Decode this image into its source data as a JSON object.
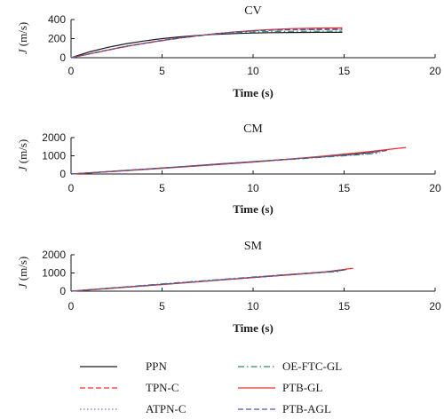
{
  "chart_data": [
    {
      "type": "line",
      "title": "CV",
      "xlabel": "Time (s)",
      "ylabel_italic": "J",
      "ylabel_rest": " (m/s)",
      "xlim": [
        0,
        20
      ],
      "ylim": [
        0,
        400
      ],
      "xticks": [
        0,
        5,
        10,
        15,
        20
      ],
      "yticks": [
        0,
        200,
        400
      ],
      "series": [
        {
          "name": "PPN",
          "x": [
            0,
            1,
            2,
            3,
            4,
            5,
            6,
            7,
            8,
            9,
            10,
            11,
            12,
            13,
            14,
            14.9
          ],
          "y": [
            0,
            60,
            108,
            145,
            175,
            200,
            219,
            234,
            245,
            253,
            259,
            262,
            264,
            265,
            266,
            266
          ]
        },
        {
          "name": "TPN-C",
          "x": [
            0,
            1,
            2,
            3,
            4,
            5,
            6,
            7,
            8,
            9,
            10,
            11,
            12,
            13,
            14,
            14.9
          ],
          "y": [
            0,
            40,
            80,
            118,
            150,
            180,
            207,
            230,
            252,
            270,
            283,
            292,
            297,
            300,
            302,
            303
          ]
        },
        {
          "name": "ATPN-C",
          "x": [
            0,
            1,
            2,
            3,
            4,
            5,
            6,
            7,
            8,
            9,
            10,
            11,
            12,
            13,
            14,
            14.9
          ],
          "y": [
            0,
            41,
            82,
            120,
            152,
            182,
            209,
            232,
            254,
            271,
            283,
            290,
            294,
            296,
            297,
            297
          ]
        },
        {
          "name": "OE-FTC-GL",
          "x": [
            0,
            1,
            2,
            3,
            4,
            5,
            6,
            7,
            8,
            9,
            10,
            11,
            12,
            13,
            14,
            14.9
          ],
          "y": [
            0,
            38,
            78,
            115,
            148,
            178,
            205,
            228,
            248,
            262,
            270,
            274,
            276,
            277,
            278,
            278
          ]
        },
        {
          "name": "PTB-GL",
          "x": [
            0,
            1,
            2,
            3,
            4,
            5,
            6,
            7,
            8,
            9,
            10,
            11,
            12,
            13,
            14,
            14.9
          ],
          "y": [
            0,
            39,
            79,
            117,
            150,
            180,
            207,
            231,
            252,
            270,
            285,
            296,
            304,
            309,
            312,
            313
          ]
        },
        {
          "name": "PTB-AGL",
          "x": [
            0,
            1,
            2,
            3,
            4,
            5,
            6,
            7,
            8,
            9,
            10,
            11,
            12,
            13,
            14,
            14.9
          ],
          "y": [
            0,
            40,
            80,
            118,
            151,
            181,
            208,
            231,
            252,
            269,
            281,
            288,
            292,
            294,
            295,
            295
          ]
        }
      ]
    },
    {
      "type": "line",
      "title": "CM",
      "xlabel": "Time (s)",
      "ylabel_italic": "J",
      "ylabel_rest": " (m/s)",
      "xlim": [
        0,
        20
      ],
      "ylim": [
        0,
        2000
      ],
      "xticks": [
        0,
        5,
        10,
        15,
        20
      ],
      "yticks": [
        0,
        1000,
        2000
      ],
      "series": [
        {
          "name": "PPN",
          "x": [
            0,
            2,
            4,
            6,
            8,
            10,
            12,
            14,
            16,
            17.2
          ],
          "y": [
            0,
            130,
            265,
            400,
            540,
            680,
            820,
            960,
            1130,
            1310
          ]
        },
        {
          "name": "TPN-C",
          "x": [
            0,
            2,
            4,
            6,
            8,
            10,
            12,
            14,
            16,
            17.4
          ],
          "y": [
            0,
            125,
            255,
            390,
            530,
            670,
            820,
            970,
            1150,
            1300
          ]
        },
        {
          "name": "ATPN-C",
          "x": [
            0,
            2,
            4,
            6,
            8,
            10,
            12,
            14,
            16,
            17.0
          ],
          "y": [
            0,
            120,
            250,
            385,
            525,
            665,
            805,
            945,
            1090,
            1180
          ]
        },
        {
          "name": "OE-FTC-GL",
          "x": [
            0,
            2,
            4,
            6,
            8,
            10,
            12,
            14,
            16,
            16.9
          ],
          "y": [
            0,
            125,
            255,
            390,
            525,
            660,
            795,
            930,
            1070,
            1150
          ]
        },
        {
          "name": "PTB-GL",
          "x": [
            0,
            2,
            4,
            6,
            8,
            10,
            12,
            14,
            16,
            18.4
          ],
          "y": [
            0,
            120,
            245,
            375,
            510,
            655,
            820,
            995,
            1190,
            1460
          ]
        },
        {
          "name": "PTB-AGL",
          "x": [
            0,
            2,
            4,
            6,
            8,
            10,
            12,
            14,
            16,
            17.3
          ],
          "y": [
            0,
            122,
            250,
            385,
            525,
            665,
            810,
            955,
            1120,
            1280
          ]
        }
      ]
    },
    {
      "type": "line",
      "title": "SM",
      "xlabel": "Time (s)",
      "ylabel_italic": "J",
      "ylabel_rest": " (m/s)",
      "xlim": [
        0,
        20
      ],
      "ylim": [
        0,
        2000
      ],
      "xticks": [
        0,
        5,
        10,
        15,
        20
      ],
      "yticks": [
        0,
        1000,
        2000
      ],
      "series": [
        {
          "name": "PPN",
          "x": [
            0,
            2,
            4,
            6,
            8,
            10,
            12,
            14,
            15.0
          ],
          "y": [
            0,
            150,
            300,
            450,
            600,
            750,
            900,
            1050,
            1160
          ]
        },
        {
          "name": "TPN-C",
          "x": [
            0,
            2,
            4,
            6,
            8,
            10,
            12,
            14,
            15.4
          ],
          "y": [
            0,
            145,
            295,
            445,
            600,
            750,
            900,
            1060,
            1250
          ]
        },
        {
          "name": "ATPN-C",
          "x": [
            0,
            2,
            4,
            6,
            8,
            10,
            12,
            14,
            14.8
          ],
          "y": [
            0,
            150,
            305,
            460,
            615,
            770,
            920,
            1060,
            1120
          ]
        },
        {
          "name": "OE-FTC-GL",
          "x": [
            0,
            2,
            4,
            6,
            8,
            10,
            12,
            14,
            14.7
          ],
          "y": [
            0,
            160,
            320,
            480,
            630,
            780,
            920,
            1040,
            1070
          ]
        },
        {
          "name": "PTB-GL",
          "x": [
            0,
            2,
            4,
            6,
            8,
            10,
            12,
            14,
            15.5
          ],
          "y": [
            0,
            140,
            290,
            440,
            595,
            750,
            905,
            1070,
            1260
          ]
        },
        {
          "name": "PTB-AGL",
          "x": [
            0,
            2,
            4,
            6,
            8,
            10,
            12,
            14,
            15.1
          ],
          "y": [
            0,
            148,
            300,
            452,
            605,
            758,
            910,
            1065,
            1180
          ]
        }
      ]
    }
  ],
  "legend": [
    {
      "name": "PPN",
      "color": "#1a1a1a",
      "dash": "solid"
    },
    {
      "name": "TPN-C",
      "color": "#e8312f",
      "dash": "dashed"
    },
    {
      "name": "ATPN-C",
      "color": "#7a6fb8",
      "dash": "dotted"
    },
    {
      "name": "OE-FTC-GL",
      "color": "#2e8b6b",
      "dash": "dashdot"
    },
    {
      "name": "PTB-GL",
      "color": "#e8312f",
      "dash": "solid"
    },
    {
      "name": "PTB-AGL",
      "color": "#4a5aa8",
      "dash": "dashed"
    }
  ]
}
